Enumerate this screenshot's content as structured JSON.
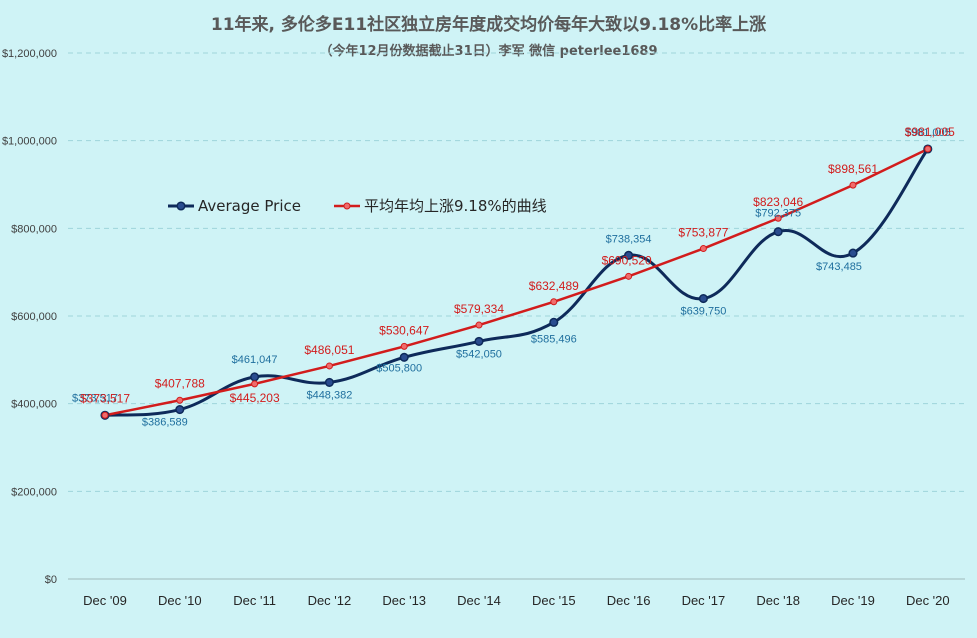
{
  "chart_data": {
    "type": "line",
    "title": "11年来, 多伦多E11社区独立房年度成交均价每年大致以9.18%比率上涨",
    "subtitle": "（今年12月份数据截止31日）李军 微信 peterlee1689",
    "categories": [
      "Dec '09",
      "Dec '10",
      "Dec '11",
      "Dec '12",
      "Dec '13",
      "Dec '14",
      "Dec '15",
      "Dec '16",
      "Dec '17",
      "Dec '18",
      "Dec '19",
      "Dec '20"
    ],
    "y_ticks": [
      "$0",
      "$200,000",
      "$400,000",
      "$600,000",
      "$800,000",
      "$1,000,000",
      "$1,200,000"
    ],
    "ylim": [
      0,
      1200000
    ],
    "grid": true,
    "legend_position": "left",
    "series": [
      {
        "name": "Average Price",
        "color": "#0e2a5a",
        "values": [
          373517,
          386589,
          461047,
          448382,
          505800,
          542050,
          585496,
          738354,
          639750,
          792375,
          743485,
          981005
        ],
        "labels": [
          "$373,517",
          "$386,589",
          "$461,047",
          "$448,382",
          "$505,800",
          "$542,050",
          "$585,496",
          "$738,354",
          "$639,750",
          "$792,375",
          "$743,485",
          "$981,005"
        ]
      },
      {
        "name": "平均年均上涨9.18%的曲线",
        "color": "#d21c1c",
        "values": [
          373517,
          407788,
          445203,
          486051,
          530647,
          579334,
          632489,
          690520,
          753877,
          823046,
          898561,
          981005
        ],
        "labels": [
          "$373,517",
          "$407,788",
          "$445,203",
          "$486,051",
          "$530,647",
          "$579,334",
          "$632,489",
          "$690,520",
          "$753,877",
          "$823,046",
          "$898,561",
          "$981,005"
        ]
      }
    ]
  }
}
